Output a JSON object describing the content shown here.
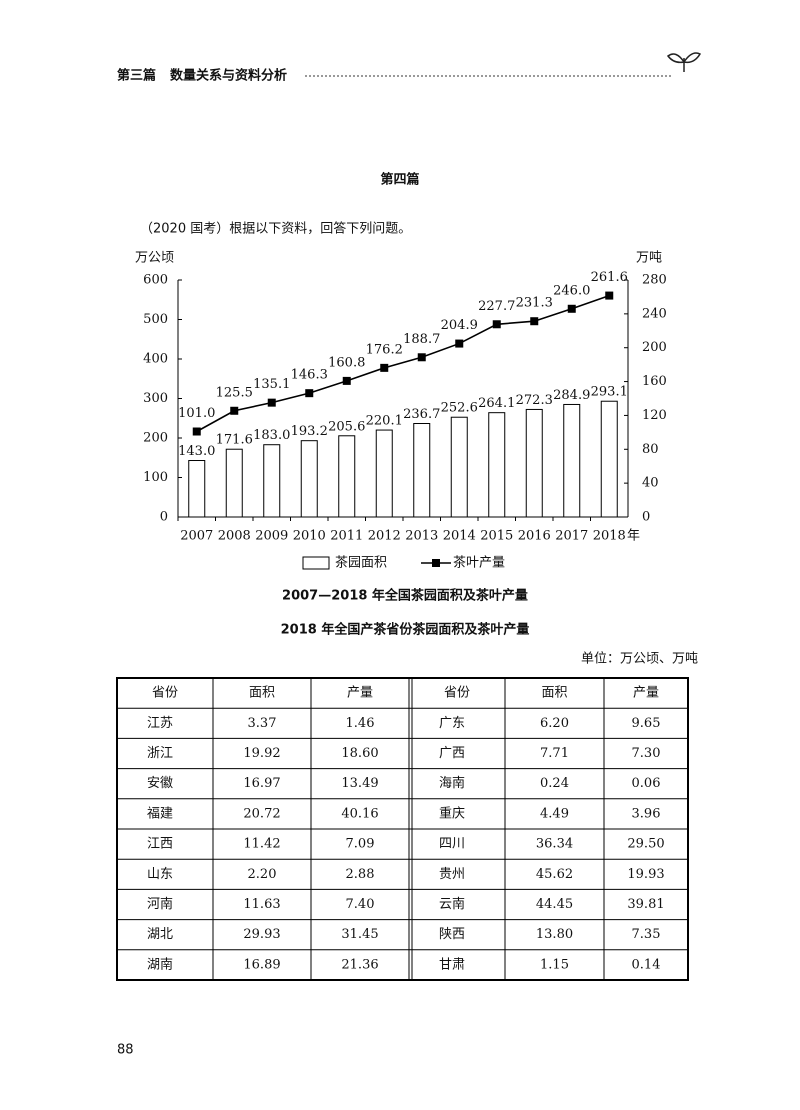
{
  "header": {
    "part": "第三篇",
    "section": "数量关系与资料分析"
  },
  "heading": "第四篇",
  "intro": "（2020 国考）根据以下资料，回答下列问题。",
  "chart_data": {
    "type": "bar",
    "title": "2007—2018 年全国茶园面积及茶叶产量",
    "y_label": "万公顷",
    "y2_label": "万吨",
    "x_label": "年",
    "categories": [
      "2007",
      "2008",
      "2009",
      "2010",
      "2011",
      "2012",
      "2013",
      "2014",
      "2015",
      "2016",
      "2017",
      "2018"
    ],
    "series": [
      {
        "name": "茶园面积",
        "type": "bar",
        "color": "#ffffff",
        "values": [
          143.0,
          171.6,
          183.0,
          193.2,
          205.6,
          220.1,
          236.7,
          252.6,
          264.1,
          272.3,
          284.9,
          293.1
        ],
        "value_labels": [
          "143.0",
          "171.6",
          "183.0",
          "193.2",
          "205.6",
          "220.1",
          "236.7",
          "252.6",
          "264.1",
          "272.3",
          "284.9",
          "293.1"
        ]
      },
      {
        "name": "茶叶产量",
        "type": "line",
        "axis": "y2",
        "color": "#000000",
        "values": [
          101.0,
          125.5,
          135.1,
          146.3,
          160.8,
          176.2,
          188.7,
          204.9,
          227.7,
          231.3,
          246.0,
          261.6
        ],
        "value_labels": [
          "101.0",
          "125.5",
          "135.1",
          "146.3",
          "160.8",
          "176.2",
          "188.7",
          "204.9",
          "227.7",
          "231.3",
          "246.0",
          "261.6"
        ]
      }
    ],
    "ylim": [
      0,
      600
    ],
    "yticks": [
      0,
      100,
      200,
      300,
      400,
      500,
      600
    ],
    "y2lim": [
      0,
      280
    ],
    "y2ticks": [
      0,
      40,
      80,
      120,
      160,
      200,
      240,
      280
    ],
    "grid": false,
    "legend": "bottom"
  },
  "table": {
    "title": "2018 年全国产茶省份茶园面积及茶叶产量",
    "unit": "单位：万公顷、万吨",
    "header": [
      "省份",
      "面积",
      "产量",
      "省份",
      "面积",
      "产量"
    ],
    "rows": [
      [
        "江苏",
        "3.37",
        "1.46",
        "广东",
        "6.20",
        "9.65"
      ],
      [
        "浙江",
        "19.92",
        "18.60",
        "广西",
        "7.71",
        "7.30"
      ],
      [
        "安徽",
        "16.97",
        "13.49",
        "海南",
        "0.24",
        "0.06"
      ],
      [
        "福建",
        "20.72",
        "40.16",
        "重庆",
        "4.49",
        "3.96"
      ],
      [
        "江西",
        "11.42",
        "7.09",
        "四川",
        "36.34",
        "29.50"
      ],
      [
        "山东",
        "2.20",
        "2.88",
        "贵州",
        "45.62",
        "19.93"
      ],
      [
        "河南",
        "11.63",
        "7.40",
        "云南",
        "44.45",
        "39.81"
      ],
      [
        "湖北",
        "29.93",
        "31.45",
        "陕西",
        "13.80",
        "7.35"
      ],
      [
        "湖南",
        "16.89",
        "21.36",
        "甘肃",
        "1.15",
        "0.14"
      ]
    ]
  },
  "page_number": "88"
}
